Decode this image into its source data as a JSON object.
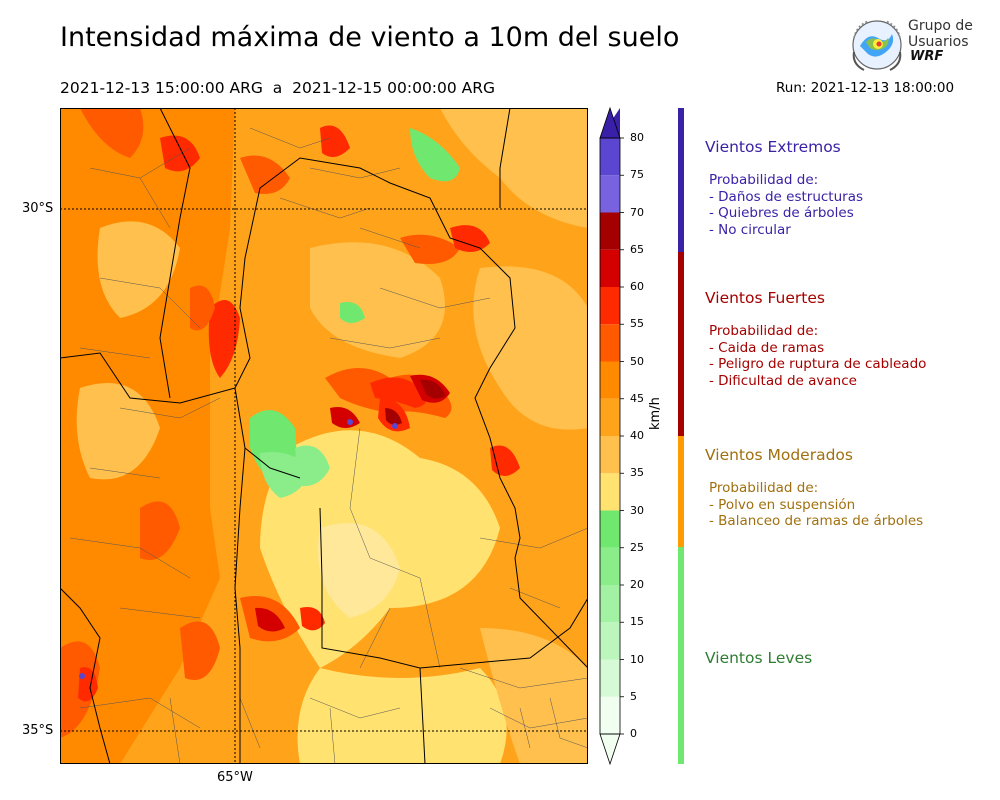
{
  "header": {
    "title": "Intensidad máxima de viento a 10m del suelo",
    "period": "2021-12-13 15:00:00 ARG  a  2021-12-15 00:00:00 ARG",
    "run": "Run: 2021-12-13 18:00:00"
  },
  "logo": {
    "line1": "Grupo de",
    "line2": "Usuarios",
    "line3": "WRF"
  },
  "map": {
    "lat_labels": [
      "30°S",
      "35°S"
    ],
    "lon_labels": [
      "65°W"
    ]
  },
  "colorbar": {
    "unit": "km/h",
    "ticks": [
      "0",
      "5",
      "10",
      "15",
      "20",
      "25",
      "30",
      "35",
      "40",
      "45",
      "50",
      "55",
      "60",
      "65",
      "70",
      "75",
      "80"
    ],
    "colors": [
      "#f0fff0",
      "#d6fad6",
      "#bdf6bd",
      "#a3f1a3",
      "#8aed8a",
      "#70e870",
      "#ffe270",
      "#ffc04d",
      "#ffa31a",
      "#ff8a00",
      "#ff5a00",
      "#ff2a00",
      "#d40000",
      "#a50000",
      "#7862e0",
      "#5b46d2",
      "#4630bc"
    ],
    "top_color": "#3a1fa8"
  },
  "categories": [
    {
      "name": "Vientos Extremos",
      "color": "#3a22a6",
      "desc": [
        " Probabilidad de:",
        " - Daños de estructuras",
        " - Quiebres de árboles",
        " - No circular"
      ]
    },
    {
      "name": "Vientos Fuertes",
      "color": "#a50000",
      "desc": [
        " Probabilidad de:",
        " - Caida de ramas",
        " - Peligro de ruptura de cableado",
        " - Dificultad de avance"
      ]
    },
    {
      "name": "Vientos Moderados",
      "color": "#a0700f",
      "desc": [
        " Probabilidad de:",
        " - Polvo en suspensión",
        " - Balanceo de ramas de árboles"
      ]
    },
    {
      "name": "Vientos Leves",
      "color": "#2e7d32",
      "desc": []
    }
  ]
}
